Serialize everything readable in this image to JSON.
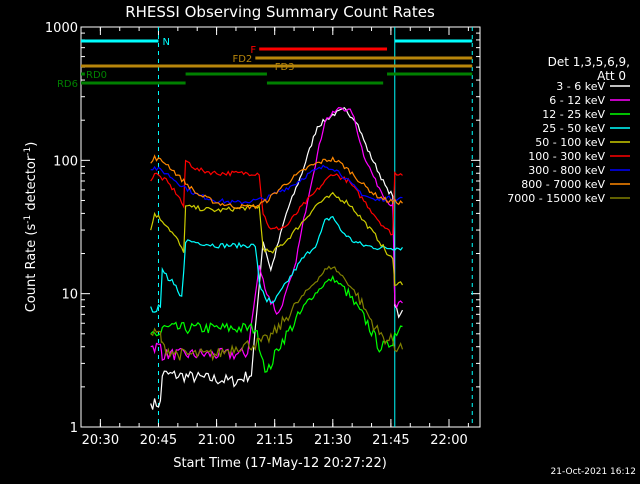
{
  "chart_data": {
    "type": "line",
    "title": "RHESSI Observing Summary Count Rates",
    "xlabel": "Start Time (17-May-12 20:27:22)",
    "ylabel": "Count Rate (s",
    "ylabel_sup": "-1",
    "ylabel_tail": " detector",
    "ylabel_sup2": "-1",
    "ylabel_end": ")",
    "yscale": "log",
    "ylim": [
      1,
      1000
    ],
    "xlim": [
      "20:25",
      "22:08"
    ],
    "x_ticks": [
      "20:30",
      "20:45",
      "21:00",
      "21:15",
      "21:30",
      "21:45",
      "22:00"
    ],
    "y_ticks": [
      {
        "value": 1,
        "label": "1"
      },
      {
        "value": 10,
        "label": "10"
      },
      {
        "value": 100,
        "label": "100"
      },
      {
        "value": 1000,
        "label": "1000"
      }
    ],
    "footer_date": "21-Oct-2021 16:12",
    "legend_header": [
      "Det 1,3,5,6,9,",
      "Att 0"
    ],
    "flags": [
      {
        "label": "N",
        "color": "#00ffff",
        "segments": [
          [
            "20:25",
            "20:45"
          ],
          [
            "21:46",
            "22:06"
          ]
        ]
      },
      {
        "label": "F",
        "color": "#ff0000",
        "segments": [
          [
            "21:11",
            "21:44"
          ]
        ]
      },
      {
        "label": "FD2",
        "color": "#b8860b",
        "segments": [
          [
            "21:10",
            "22:06"
          ]
        ]
      },
      {
        "label": "FD3",
        "color": "#b8860b",
        "segments": [
          [
            "20:25",
            "22:06"
          ]
        ]
      },
      {
        "label": "RD0",
        "color": "#008000",
        "segments": [
          [
            "20:25",
            "20:26"
          ],
          [
            "20:52",
            "21:13"
          ],
          [
            "21:44",
            "22:06"
          ]
        ]
      },
      {
        "label": "RD6",
        "color": "#008000",
        "segments": [
          [
            "20:25",
            "20:52"
          ],
          [
            "21:13",
            "21:43"
          ]
        ]
      }
    ],
    "vlines": [
      {
        "x": "20:45",
        "color": "#00ffff",
        "style": "dashed"
      },
      {
        "x": "21:46",
        "color": "#00ffff",
        "style": "solid"
      },
      {
        "x": "22:06",
        "color": "#00ffff",
        "style": "dashed"
      }
    ],
    "series": [
      {
        "name": "3 - 6 keV",
        "color": "#ffffff",
        "x": [
          "20:43",
          "20:45.5",
          "20:46",
          "21:05",
          "21:09",
          "21:12",
          "21:14",
          "21:18",
          "21:22",
          "21:26",
          "21:30",
          "21:33",
          "21:36",
          "21:39",
          "21:42",
          "21:44",
          "21:45.5",
          "21:46",
          "21:47",
          "21:48"
        ],
        "y": [
          1.5,
          1.5,
          2.5,
          2.2,
          2.5,
          25,
          15,
          40,
          80,
          180,
          220,
          240,
          200,
          120,
          80,
          60,
          55,
          8,
          7,
          8
        ]
      },
      {
        "name": "6 - 12 keV",
        "color": "#ff00ff",
        "x": [
          "20:43",
          "20:45.5",
          "20:46",
          "21:05",
          "21:08",
          "21:11",
          "21:13",
          "21:16",
          "21:20",
          "21:24",
          "21:28",
          "21:32",
          "21:35",
          "21:38",
          "21:41",
          "21:44",
          "21:45.5",
          "21:46",
          "21:48"
        ],
        "y": [
          4,
          4,
          3.5,
          3.5,
          3.6,
          16,
          10,
          7,
          15,
          60,
          200,
          250,
          230,
          110,
          70,
          50,
          45,
          8,
          8
        ]
      },
      {
        "name": "12 - 25 keV",
        "color": "#00ff00",
        "x": [
          "20:43",
          "20:45.5",
          "20:46",
          "20:52",
          "21:00",
          "21:10",
          "21:13",
          "21:16",
          "21:20",
          "21:24",
          "21:28",
          "21:30",
          "21:33",
          "21:36",
          "21:39",
          "21:42",
          "21:44",
          "21:45.5",
          "21:46",
          "21:48"
        ],
        "y": [
          5,
          5,
          5.5,
          5.5,
          5.5,
          5.5,
          2.5,
          4,
          6,
          9,
          12,
          13,
          11,
          8,
          6,
          4,
          4,
          4.5,
          5,
          6
        ]
      },
      {
        "name": "25 - 50 keV",
        "color": "#00ffff",
        "x": [
          "20:43",
          "20:45.5",
          "20:46",
          "20:51",
          "20:52",
          "21:00",
          "21:10",
          "21:11",
          "21:14",
          "21:18",
          "21:22",
          "21:26",
          "21:28",
          "21:30",
          "21:32",
          "21:35",
          "21:38",
          "21:42",
          "21:44",
          "21:45.5",
          "21:46",
          "21:48"
        ],
        "y": [
          8,
          8,
          15,
          9,
          25,
          23,
          23,
          12,
          8,
          12,
          18,
          24,
          35,
          38,
          30,
          25,
          23,
          22,
          22,
          22,
          22,
          22
        ]
      },
      {
        "name": "50 - 100 keV",
        "color": "#cccc00",
        "x": [
          "20:43",
          "20:44",
          "20:47",
          "20:50",
          "20:51.5",
          "20:52",
          "21:00",
          "21:11",
          "21:12",
          "21:14",
          "21:18",
          "21:22",
          "21:26",
          "21:30",
          "21:34",
          "21:38",
          "21:42",
          "21:44",
          "21:45.5",
          "21:46",
          "21:48"
        ],
        "y": [
          30,
          40,
          33,
          25,
          20,
          45,
          42,
          45,
          22,
          20,
          25,
          34,
          47,
          55,
          48,
          35,
          25,
          20,
          18,
          12,
          12
        ]
      },
      {
        "name": "100 - 300 keV",
        "color": "#ff0000",
        "x": [
          "20:43",
          "20:44",
          "20:47",
          "20:50",
          "20:51.5",
          "20:52",
          "20:55",
          "21:00",
          "21:05",
          "21:11",
          "21:12",
          "21:14",
          "21:18",
          "21:22",
          "21:26",
          "21:30",
          "21:34",
          "21:38",
          "21:42",
          "21:44",
          "21:45.5",
          "21:46",
          "21:48"
        ],
        "y": [
          70,
          80,
          70,
          55,
          45,
          100,
          85,
          80,
          80,
          80,
          40,
          30,
          32,
          45,
          60,
          80,
          70,
          50,
          35,
          30,
          28,
          80,
          80
        ]
      },
      {
        "name": "300 - 800 keV",
        "color": "#0000ff",
        "x": [
          "20:43",
          "20:44",
          "20:47",
          "20:51",
          "20:55",
          "21:00",
          "21:05",
          "21:10",
          "21:13",
          "21:16",
          "21:20",
          "21:24",
          "21:28",
          "21:30",
          "21:32",
          "21:35",
          "21:38",
          "21:41",
          "21:44",
          "21:48"
        ],
        "y": [
          85,
          88,
          80,
          65,
          55,
          50,
          48,
          50,
          52,
          58,
          66,
          80,
          90,
          88,
          80,
          65,
          55,
          50,
          52,
          52
        ]
      },
      {
        "name": "800 - 7000 keV",
        "color": "#ff8800",
        "x": [
          "20:43",
          "20:44",
          "20:47",
          "20:51",
          "20:55",
          "21:00",
          "21:05",
          "21:10",
          "21:13",
          "21:16",
          "21:20",
          "21:24",
          "21:28",
          "21:30",
          "21:32",
          "21:35",
          "21:38",
          "21:41",
          "21:44",
          "21:48"
        ],
        "y": [
          95,
          105,
          95,
          72,
          56,
          48,
          45,
          45,
          50,
          60,
          75,
          90,
          100,
          102,
          95,
          80,
          65,
          55,
          50,
          48
        ]
      },
      {
        "name": "7000 - 15000 keV",
        "color": "#808000",
        "x": [
          "20:43",
          "20:45.5",
          "20:46",
          "20:50",
          "20:55",
          "21:00",
          "21:05",
          "21:10",
          "21:13",
          "21:16",
          "21:20",
          "21:24",
          "21:28",
          "21:30",
          "21:33",
          "21:36",
          "21:39",
          "21:42",
          "21:44",
          "21:45.5",
          "21:46",
          "21:48"
        ],
        "y": [
          5,
          5,
          4,
          3.5,
          3.5,
          3.5,
          4,
          4.2,
          4.5,
          5.5,
          8,
          11,
          15,
          16,
          13,
          10,
          7,
          5,
          4.5,
          4.5,
          4,
          4
        ]
      }
    ]
  }
}
